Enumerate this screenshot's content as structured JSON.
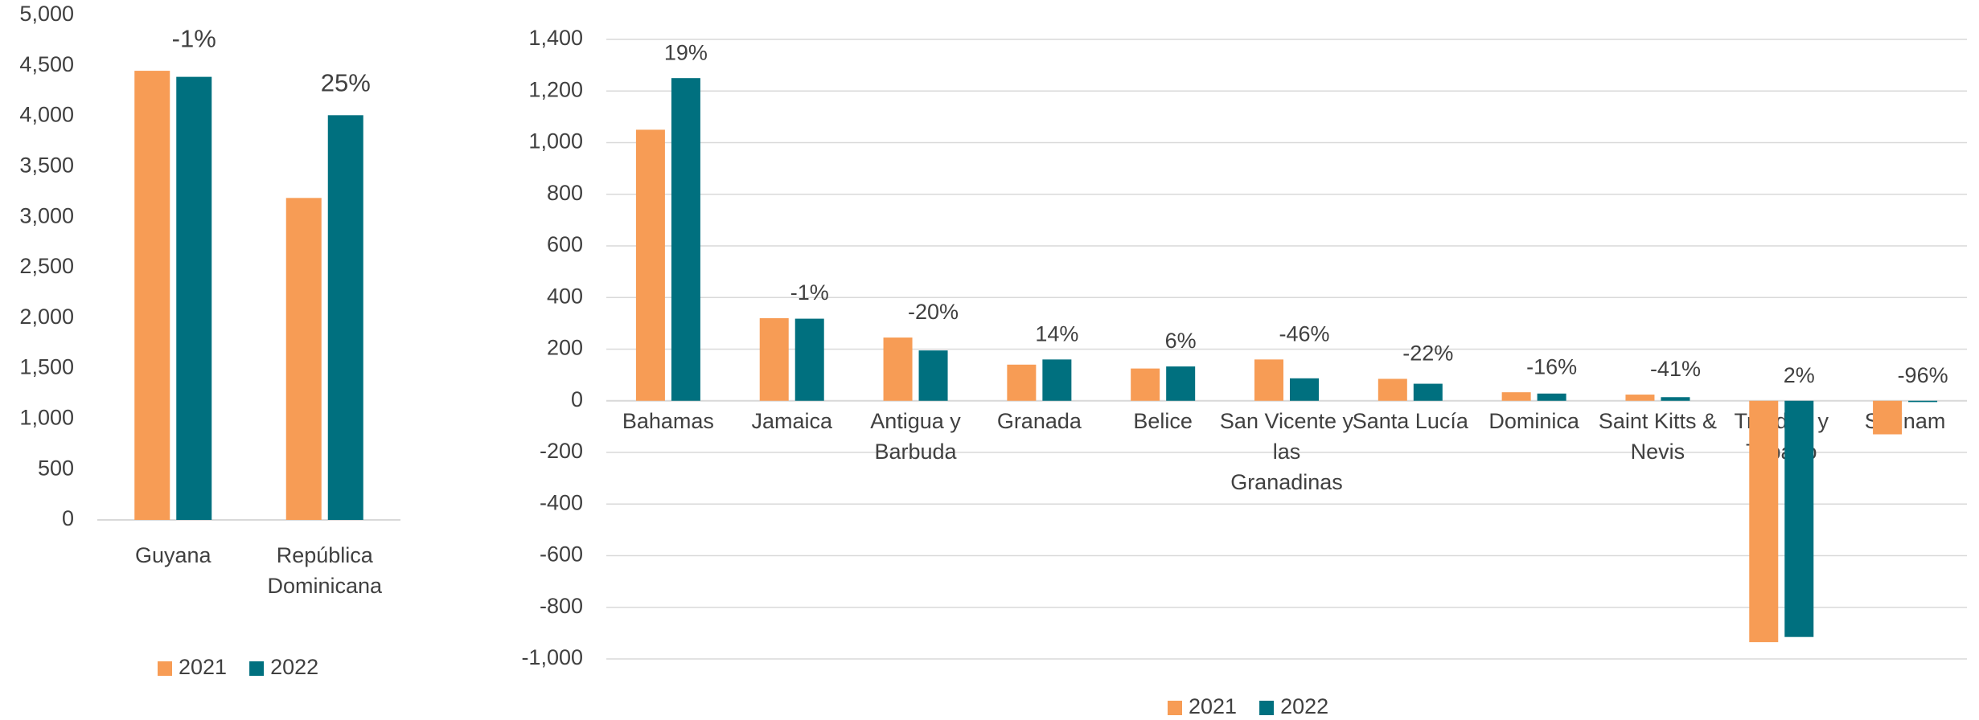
{
  "chart_data": [
    {
      "type": "bar",
      "categories": [
        "Guyana",
        "República Dominicana"
      ],
      "series": [
        {
          "name": "2021",
          "color": "#F79C55",
          "values": [
            4450,
            3190
          ]
        },
        {
          "name": "2022",
          "color": "#00707F",
          "values": [
            4390,
            4010
          ]
        }
      ],
      "change_labels": [
        "-1%",
        "25%"
      ],
      "ylim": [
        0,
        5000
      ],
      "yticks": [
        0,
        500,
        {
          "value": 1000,
          "label": "1,000"
        },
        {
          "value": 1500,
          "label": "1,500"
        },
        {
          "value": 2000,
          "label": "2,000"
        },
        {
          "value": 2500,
          "label": "2,500"
        },
        {
          "value": 3000,
          "label": "3,000"
        },
        {
          "value": 3500,
          "label": "3,500"
        },
        {
          "value": 4000,
          "label": "4,000"
        },
        {
          "value": 4500,
          "label": "4,500"
        },
        {
          "value": 5000,
          "label": "5,000"
        }
      ],
      "grid": false,
      "legend": "bottom"
    },
    {
      "type": "bar",
      "categories": [
        "Bahamas",
        "Jamaica",
        "Antigua y Barbuda",
        "Granada",
        "Belice",
        "San Vicente y las Granadinas",
        "Santa Lucía",
        "Dominica",
        "Saint Kitts & Nevis",
        "Trinidad y Tabago",
        "Surinam"
      ],
      "series": [
        {
          "name": "2021",
          "color": "#F79C55",
          "values": [
            1050,
            320,
            245,
            140,
            125,
            160,
            85,
            33,
            24,
            -935,
            -130
          ]
        },
        {
          "name": "2022",
          "color": "#00707F",
          "values": [
            1250,
            318,
            195,
            160,
            133,
            87,
            66,
            28,
            14,
            -915,
            -5
          ]
        }
      ],
      "change_labels": [
        "19%",
        "-1%",
        "-20%",
        "14%",
        "6%",
        "-46%",
        "-22%",
        "-16%",
        "-41%",
        "2%",
        "-96%"
      ],
      "ylim": [
        -1000,
        1400
      ],
      "yticks": [
        {
          "value": -1000,
          "label": "-1,000"
        },
        -800,
        -600,
        -400,
        -200,
        0,
        200,
        400,
        600,
        800,
        {
          "value": 1000,
          "label": "1,000"
        },
        {
          "value": 1200,
          "label": "1,200"
        },
        {
          "value": 1400,
          "label": "1,400"
        }
      ],
      "grid": true,
      "legend": "bottom"
    }
  ]
}
